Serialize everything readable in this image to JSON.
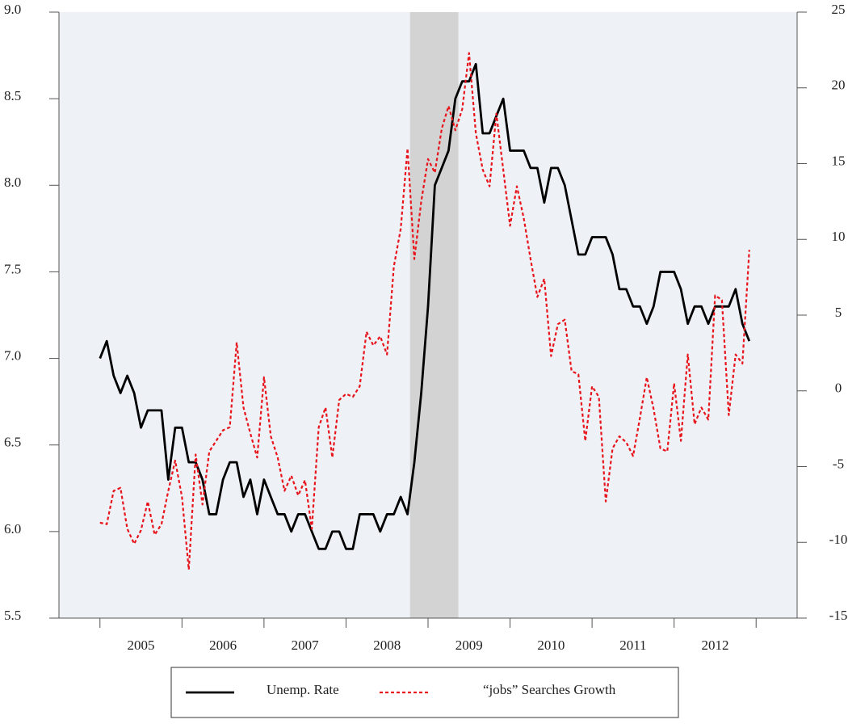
{
  "chart_data": {
    "type": "line",
    "x": [
      2005,
      2005.083,
      2005.167,
      2005.25,
      2005.333,
      2005.417,
      2005.5,
      2005.583,
      2005.667,
      2005.75,
      2005.833,
      2005.917,
      2006,
      2006.083,
      2006.167,
      2006.25,
      2006.333,
      2006.417,
      2006.5,
      2006.583,
      2006.667,
      2006.75,
      2006.833,
      2006.917,
      2007,
      2007.083,
      2007.167,
      2007.25,
      2007.333,
      2007.417,
      2007.5,
      2007.583,
      2007.667,
      2007.75,
      2007.833,
      2007.917,
      2008,
      2008.083,
      2008.167,
      2008.25,
      2008.333,
      2008.417,
      2008.5,
      2008.583,
      2008.667,
      2008.75,
      2008.833,
      2008.917,
      2009,
      2009.083,
      2009.167,
      2009.25,
      2009.333,
      2009.417,
      2009.5,
      2009.583,
      2009.667,
      2009.75,
      2009.833,
      2009.917,
      2010,
      2010.083,
      2010.167,
      2010.25,
      2010.333,
      2010.417,
      2010.5,
      2010.583,
      2010.667,
      2010.75,
      2010.833,
      2010.917,
      2011,
      2011.083,
      2011.167,
      2011.25,
      2011.333,
      2011.417,
      2011.5,
      2011.583,
      2011.667,
      2011.75,
      2011.833,
      2011.917,
      2012,
      2012.083,
      2012.167,
      2012.25,
      2012.333,
      2012.417,
      2012.5,
      2012.583,
      2012.667,
      2012.75,
      2012.833,
      2012.917
    ],
    "series": [
      {
        "name": "Unemp. Rate",
        "color": "#000000",
        "dashed": false,
        "values": [
          7.0,
          7.1,
          6.9,
          6.8,
          6.9,
          6.8,
          6.6,
          6.7,
          6.7,
          6.7,
          6.3,
          6.6,
          6.6,
          6.4,
          6.4,
          6.3,
          6.1,
          6.1,
          6.3,
          6.4,
          6.4,
          6.2,
          6.3,
          6.1,
          6.3,
          6.2,
          6.1,
          6.1,
          6.0,
          6.1,
          6.1,
          6.0,
          5.9,
          5.9,
          6.0,
          6.0,
          5.9,
          5.9,
          6.1,
          6.1,
          6.1,
          6.0,
          6.1,
          6.1,
          6.2,
          6.1,
          6.4,
          6.8,
          7.3,
          8.0,
          8.1,
          8.2,
          8.5,
          8.6,
          8.6,
          8.7,
          8.3,
          8.3,
          8.4,
          8.5,
          8.2,
          8.2,
          8.2,
          8.1,
          8.1,
          7.9,
          8.1,
          8.1,
          8.0,
          7.8,
          7.6,
          7.6,
          7.7,
          7.7,
          7.7,
          7.6,
          7.4,
          7.4,
          7.3,
          7.3,
          7.2,
          7.3,
          7.5,
          7.5,
          7.5,
          7.4,
          7.2,
          7.3,
          7.3,
          7.2,
          7.3,
          7.3,
          7.3,
          7.4,
          7.2,
          7.1
        ]
      },
      {
        "name": "“jobs” Searches Growth",
        "color": "#e8141b",
        "dashed": true,
        "axis": "y2",
        "values": [
          -8.7,
          -8.8,
          -6.6,
          -6.4,
          -9.1,
          -10.1,
          -9.2,
          -7.3,
          -9.5,
          -8.8,
          -6.6,
          -4.6,
          -7.0,
          -11.8,
          -4.2,
          -7.5,
          -4.0,
          -3.3,
          -2.6,
          -2.4,
          3.2,
          -1.1,
          -2.8,
          -4.4,
          0.9,
          -3.0,
          -4.4,
          -6.6,
          -5.6,
          -6.9,
          -5.9,
          -9.1,
          -2.4,
          -1.1,
          -4.4,
          -0.6,
          -0.2,
          -0.4,
          0.3,
          3.9,
          3.0,
          3.6,
          2.4,
          8.2,
          10.7,
          16.0,
          8.7,
          12.5,
          15.3,
          14.4,
          17.3,
          18.8,
          17.2,
          18.6,
          22.3,
          17.0,
          14.6,
          13.5,
          18.3,
          14.6,
          10.9,
          13.5,
          11.4,
          8.7,
          6.2,
          7.4,
          2.3,
          4.4,
          4.7,
          1.3,
          1.1,
          -3.3,
          0.3,
          -0.4,
          -7.3,
          -3.8,
          -3.0,
          -3.4,
          -4.3,
          -1.8,
          0.9,
          -1.2,
          -3.8,
          -4.0,
          0.5,
          -3.3,
          2.4,
          -2.2,
          -1.1,
          -1.9,
          6.3,
          6.0,
          -1.6,
          2.4,
          1.8,
          9.3
        ]
      }
    ],
    "xlim": [
      2004.5,
      2013.5
    ],
    "xticks": [
      {
        "value": 2005.5,
        "label": "2005"
      },
      {
        "value": 2006.5,
        "label": "2006"
      },
      {
        "value": 2007.5,
        "label": "2007"
      },
      {
        "value": 2008.5,
        "label": "2008"
      },
      {
        "value": 2009.5,
        "label": "2009"
      },
      {
        "value": 2010.5,
        "label": "2010"
      },
      {
        "value": 2011.5,
        "label": "2011"
      },
      {
        "value": 2012.5,
        "label": "2012"
      }
    ],
    "xtick_marks": [
      2005,
      2006,
      2007,
      2008,
      2009,
      2010,
      2011,
      2012,
      2013
    ],
    "ylim": [
      5.5,
      9.0
    ],
    "yticks": [
      {
        "value": 5.5,
        "label": "5.5"
      },
      {
        "value": 6,
        "label": "6.0"
      },
      {
        "value": 6.5,
        "label": "6.5"
      },
      {
        "value": 7,
        "label": "7.0"
      },
      {
        "value": 7.5,
        "label": "7.5"
      },
      {
        "value": 8,
        "label": "8.0"
      },
      {
        "value": 8.5,
        "label": "8.5"
      },
      {
        "value": 9,
        "label": "9.0"
      }
    ],
    "y2lim": [
      -15,
      25
    ],
    "y2ticks": [
      -15,
      -10,
      -5,
      0,
      5,
      10,
      15,
      20,
      25
    ],
    "shaded": [
      2008.78,
      2009.37
    ],
    "legend": "bottom"
  }
}
